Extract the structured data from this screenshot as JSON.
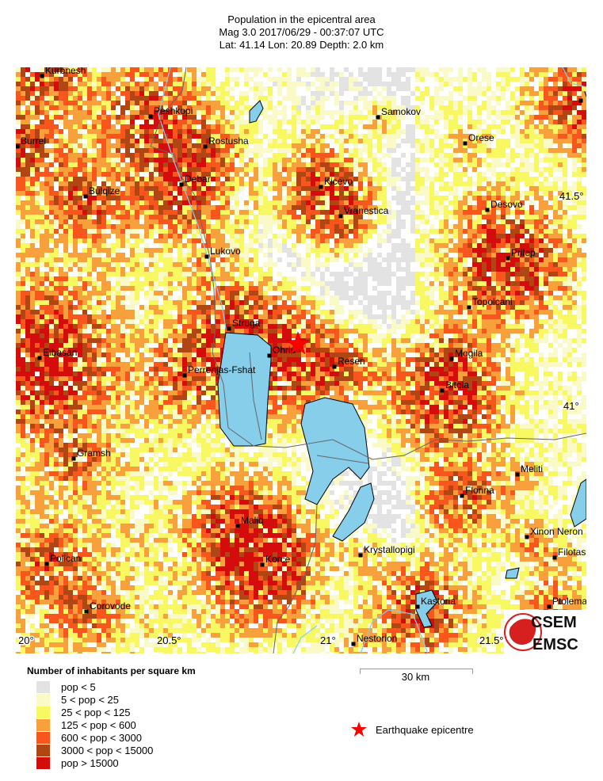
{
  "header": {
    "title": "Population in the epicentral area",
    "event": "Mag 3.0  2017/06/29 - 00:37:07 UTC",
    "location": "Lat: 41.14    Lon:  20.89    Depth:  2.0 km"
  },
  "map": {
    "epicentre": {
      "lat": 41.14,
      "lon": 20.89
    },
    "colors": {
      "lake": "#87ceeb",
      "border": "#666666",
      "river": "#87ceeb",
      "epicentre": "#ff0000"
    },
    "lon_labels": [
      "20°",
      "20.5°",
      "21°",
      "21.5°"
    ],
    "lat_labels": [
      "41.5°",
      "41°"
    ],
    "cities": [
      {
        "name": "Kurbnesh"
      },
      {
        "name": "Peshkopi"
      },
      {
        "name": "Burrel"
      },
      {
        "name": "Rostusha"
      },
      {
        "name": "Samokov"
      },
      {
        "name": "Orese"
      },
      {
        "name": "Debar"
      },
      {
        "name": "Bulqize"
      },
      {
        "name": "Kicevo"
      },
      {
        "name": "Vranestica"
      },
      {
        "name": "Desovo"
      },
      {
        "name": "Lukovo"
      },
      {
        "name": "Prilep"
      },
      {
        "name": "Topolcani"
      },
      {
        "name": "Struga"
      },
      {
        "name": "Ohrid"
      },
      {
        "name": "Resen"
      },
      {
        "name": "Mogila"
      },
      {
        "name": "Elbasan"
      },
      {
        "name": "Perrenjas-Fshat"
      },
      {
        "name": "Bitola"
      },
      {
        "name": "Gramsh"
      },
      {
        "name": "Meliti"
      },
      {
        "name": "Florina"
      },
      {
        "name": "Maliq"
      },
      {
        "name": "Xinon Neron"
      },
      {
        "name": "Krystallopigi"
      },
      {
        "name": "Filotas"
      },
      {
        "name": "Polican"
      },
      {
        "name": "Korce"
      },
      {
        "name": "Kastoria"
      },
      {
        "name": "Ptolema"
      },
      {
        "name": "Corovode"
      },
      {
        "name": "Nestorion"
      },
      {
        "name": "V"
      }
    ]
  },
  "legend": {
    "title": "Number of inhabitants per square km",
    "items": [
      {
        "label": "pop < 5",
        "color": "#e3e3e3"
      },
      {
        "label": "5 < pop < 25",
        "color": "#fafac8"
      },
      {
        "label": "25 < pop < 125",
        "color": "#f8f862"
      },
      {
        "label": "125 < pop < 600",
        "color": "#f8a03c"
      },
      {
        "label": "600 < pop < 3000",
        "color": "#f8561c"
      },
      {
        "label": "3000 < pop < 15000",
        "color": "#b04614"
      },
      {
        "label": "pop > 15000",
        "color": "#d40c0c"
      }
    ]
  },
  "scale_bar": {
    "label": "30 km"
  },
  "epicentre_legend": {
    "label": "Earthquake epicentre"
  },
  "logo": {
    "top": "CSEM",
    "bottom": "EMSC"
  }
}
